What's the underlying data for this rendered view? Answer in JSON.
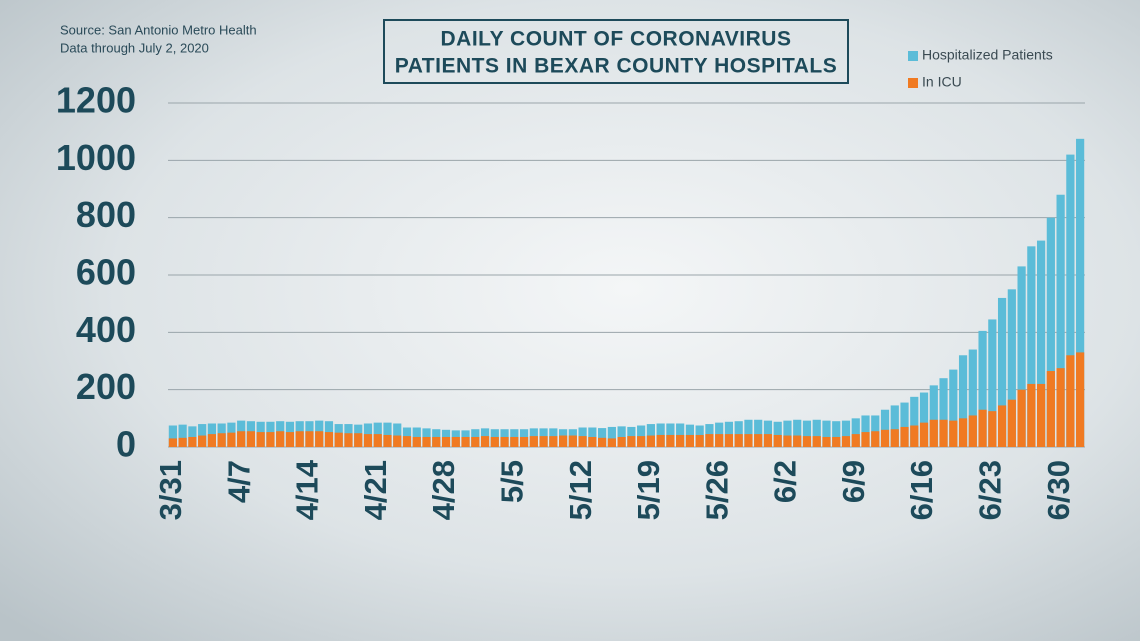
{
  "chart_data": {
    "type": "bar",
    "barmode": "overlay",
    "title": [
      "DAILY COUNT OF CORONAVIRUS",
      "PATIENTS IN BEXAR COUNTY HOSPITALS"
    ],
    "source": "Source: San Antonio Metro Health",
    "note": "Data through July 2, 2020",
    "categories": [
      "3/31",
      null,
      null,
      null,
      null,
      null,
      null,
      "4/7",
      null,
      null,
      null,
      null,
      null,
      null,
      "4/14",
      null,
      null,
      null,
      null,
      null,
      null,
      "4/21",
      null,
      null,
      null,
      null,
      null,
      null,
      "4/28",
      null,
      null,
      null,
      null,
      null,
      null,
      "5/5",
      null,
      null,
      null,
      null,
      null,
      null,
      "5/12",
      null,
      null,
      null,
      null,
      null,
      null,
      "5/19",
      null,
      null,
      null,
      null,
      null,
      null,
      "5/26",
      null,
      null,
      null,
      null,
      null,
      null,
      "6/2",
      null,
      null,
      null,
      null,
      null,
      null,
      "6/9",
      null,
      null,
      null,
      null,
      null,
      null,
      "6/16",
      null,
      null,
      null,
      null,
      null,
      null,
      "6/23",
      null,
      null,
      null,
      null,
      null,
      null,
      "6/30",
      null,
      null
    ],
    "series": [
      {
        "name": "Hospitalized Patients",
        "color": "#5bbcd8",
        "values": [
          75,
          78,
          72,
          80,
          82,
          82,
          85,
          92,
          90,
          88,
          88,
          90,
          88,
          90,
          90,
          92,
          90,
          80,
          80,
          78,
          82,
          85,
          85,
          82,
          68,
          68,
          65,
          62,
          60,
          58,
          58,
          62,
          65,
          62,
          62,
          62,
          62,
          65,
          65,
          65,
          62,
          62,
          68,
          68,
          66,
          70,
          72,
          70,
          75,
          80,
          82,
          82,
          82,
          78,
          75,
          80,
          85,
          88,
          90,
          95,
          95,
          92,
          88,
          92,
          95,
          92,
          95,
          92,
          90,
          92,
          100,
          110,
          110,
          130,
          145,
          155,
          175,
          190,
          215,
          240,
          270,
          320,
          340,
          405,
          445,
          520,
          550,
          630,
          700,
          720,
          800,
          880,
          1020,
          1075
        ]
      },
      {
        "name": "In ICU",
        "color": "#f07a22",
        "values": [
          30,
          32,
          35,
          40,
          45,
          48,
          50,
          55,
          55,
          52,
          52,
          55,
          52,
          55,
          55,
          55,
          52,
          50,
          48,
          48,
          45,
          45,
          42,
          40,
          38,
          35,
          35,
          35,
          35,
          35,
          35,
          35,
          38,
          35,
          35,
          35,
          35,
          38,
          38,
          38,
          40,
          40,
          38,
          35,
          32,
          30,
          35,
          38,
          38,
          40,
          42,
          42,
          42,
          42,
          42,
          45,
          45,
          45,
          45,
          45,
          45,
          45,
          42,
          40,
          40,
          38,
          38,
          35,
          35,
          38,
          45,
          52,
          55,
          60,
          62,
          70,
          75,
          85,
          95,
          95,
          92,
          100,
          110,
          130,
          125,
          145,
          165,
          200,
          220,
          220,
          265,
          275,
          320,
          330
        ]
      }
    ],
    "ylim": [
      0,
      1200
    ],
    "yticks": [
      0,
      200,
      400,
      600,
      800,
      1000,
      1200
    ],
    "grid": true,
    "legend": "top-right"
  }
}
